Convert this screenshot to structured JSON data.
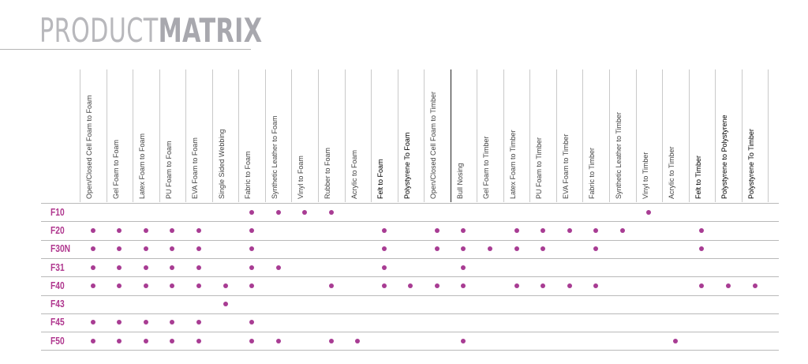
{
  "header": {
    "title_light": "PRODUCT",
    "title_bold": "MATRIX"
  },
  "columns": [
    "Open/Closed Cell Foam to Foam",
    "Gel Foam to Foam",
    "Latex Foam to Foam",
    "PU Foam to Foam",
    "EVA Foam to Foam",
    "Single Sided Webbing",
    "Fabric to Foam",
    "Synthetic Leather to Foam",
    "Vinyl to Foam",
    "Rubber to Foam",
    "Acrylic to Foam",
    "Felt to Foam",
    "Polystyrene To Foam",
    "Open/Closed Cell Foam to Timber",
    "Bull Nosing",
    "Gel Foam to Timber",
    "Latex Foam to Timber",
    "PU Foam to Timber",
    "EVA Foam to Timber",
    "Fabric to Timber",
    "Synthetic Leather to Timber",
    "Vinyl to Timber",
    "Acrylic to Timber",
    "Felt to Timber",
    "Polystyrene to Polystyrene",
    "Polystyrene To Timber"
  ],
  "rows": [
    {
      "label": "F10",
      "marks": [
        6,
        7,
        8,
        9,
        21
      ]
    },
    {
      "label": "F20",
      "marks": [
        0,
        1,
        2,
        3,
        4,
        6,
        11,
        13,
        14,
        16,
        17,
        18,
        19,
        20,
        23
      ]
    },
    {
      "label": "F30N",
      "marks": [
        0,
        1,
        2,
        3,
        4,
        6,
        11,
        13,
        14,
        15,
        16,
        17,
        19,
        23
      ]
    },
    {
      "label": "F31",
      "marks": [
        0,
        1,
        2,
        3,
        4,
        6,
        7,
        11,
        14
      ]
    },
    {
      "label": "F40",
      "marks": [
        0,
        1,
        2,
        3,
        4,
        5,
        6,
        9,
        11,
        12,
        13,
        14,
        16,
        17,
        18,
        19,
        23,
        24,
        25
      ]
    },
    {
      "label": "F43",
      "marks": [
        5
      ]
    },
    {
      "label": "F45",
      "marks": [
        0,
        1,
        2,
        3,
        4,
        6
      ]
    },
    {
      "label": "F50",
      "marks": [
        0,
        1,
        2,
        3,
        4,
        6,
        7,
        9,
        10,
        14,
        22
      ]
    }
  ],
  "colors": {
    "dot": "#a83c93",
    "row_label": "#b0388f"
  }
}
